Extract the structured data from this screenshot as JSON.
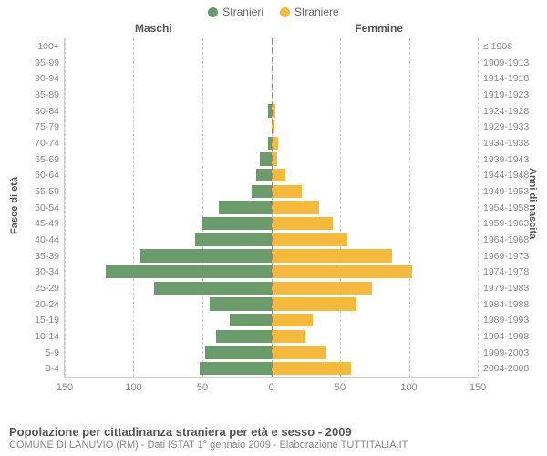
{
  "legend": {
    "male": {
      "label": "Stranieri",
      "color": "#6b9b6b"
    },
    "female": {
      "label": "Straniere",
      "color": "#f5b93e"
    }
  },
  "column_headers": {
    "left": "Maschi",
    "right": "Femmine"
  },
  "axis_titles": {
    "left": "Fasce di età",
    "right": "Anni di nascita"
  },
  "chart": {
    "type": "population-pyramid",
    "x_max": 150,
    "x_ticks": [
      0,
      50,
      100,
      150
    ],
    "grid_color": "#cccccc",
    "center_line_color": "#888888",
    "male_color": "#6b9b6b",
    "female_color": "#f5b93e",
    "bar_gap_pct": 20,
    "background": "#ffffff",
    "rows": [
      {
        "age": "100+",
        "birth": "≤ 1908",
        "m": 0,
        "f": 0
      },
      {
        "age": "95-99",
        "birth": "1909-1913",
        "m": 0,
        "f": 0
      },
      {
        "age": "90-94",
        "birth": "1914-1918",
        "m": 0,
        "f": 0
      },
      {
        "age": "85-89",
        "birth": "1919-1923",
        "m": 0,
        "f": 0
      },
      {
        "age": "80-84",
        "birth": "1924-1928",
        "m": 2,
        "f": 3
      },
      {
        "age": "75-79",
        "birth": "1929-1933",
        "m": 0,
        "f": 2
      },
      {
        "age": "70-74",
        "birth": "1934-1938",
        "m": 2,
        "f": 5
      },
      {
        "age": "65-69",
        "birth": "1939-1943",
        "m": 8,
        "f": 4
      },
      {
        "age": "60-64",
        "birth": "1944-1948",
        "m": 11,
        "f": 10
      },
      {
        "age": "55-59",
        "birth": "1949-1953",
        "m": 14,
        "f": 22
      },
      {
        "age": "50-54",
        "birth": "1954-1958",
        "m": 38,
        "f": 35
      },
      {
        "age": "45-49",
        "birth": "1959-1963",
        "m": 50,
        "f": 45
      },
      {
        "age": "40-44",
        "birth": "1964-1968",
        "m": 55,
        "f": 55
      },
      {
        "age": "35-39",
        "birth": "1969-1973",
        "m": 95,
        "f": 88
      },
      {
        "age": "30-34",
        "birth": "1974-1978",
        "m": 120,
        "f": 102
      },
      {
        "age": "25-29",
        "birth": "1979-1983",
        "m": 85,
        "f": 73
      },
      {
        "age": "20-24",
        "birth": "1984-1988",
        "m": 45,
        "f": 62
      },
      {
        "age": "15-19",
        "birth": "1989-1993",
        "m": 30,
        "f": 30
      },
      {
        "age": "10-14",
        "birth": "1994-1998",
        "m": 40,
        "f": 25
      },
      {
        "age": "5-9",
        "birth": "1999-2003",
        "m": 48,
        "f": 40
      },
      {
        "age": "0-4",
        "birth": "2004-2008",
        "m": 52,
        "f": 58
      }
    ]
  },
  "footer": {
    "title": "Popolazione per cittadinanza straniera per età e sesso - 2009",
    "subtitle": "COMUNE DI LANUVIO (RM) - Dati ISTAT 1° gennaio 2009 - Elaborazione TUTTITALIA.IT"
  }
}
